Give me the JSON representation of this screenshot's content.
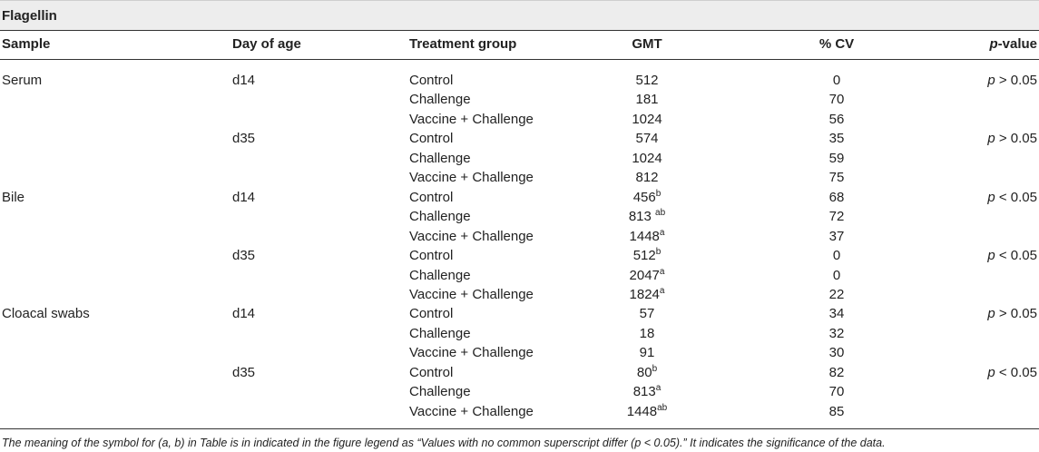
{
  "title": "Flagellin",
  "headers": {
    "sample": "Sample",
    "day": "Day of age",
    "group": "Treatment group",
    "gmt": "GMT",
    "cv": "% CV",
    "p_italic": "p",
    "p_rest": "-value"
  },
  "rows": [
    {
      "sample": "Serum",
      "day": "d14",
      "group": "Control",
      "gmt": "512",
      "gmt_sup": "",
      "cv": "0",
      "p_italic": "p",
      "p_rest": " > 0.05"
    },
    {
      "sample": "",
      "day": "",
      "group": "Challenge",
      "gmt": "181",
      "gmt_sup": "",
      "cv": "70",
      "p_italic": "",
      "p_rest": ""
    },
    {
      "sample": "",
      "day": "",
      "group": "Vaccine + Challenge",
      "gmt": "1024",
      "gmt_sup": "",
      "cv": "56",
      "p_italic": "",
      "p_rest": ""
    },
    {
      "sample": "",
      "day": "d35",
      "group": "Control",
      "gmt": "574",
      "gmt_sup": "",
      "cv": "35",
      "p_italic": "p",
      "p_rest": " > 0.05"
    },
    {
      "sample": "",
      "day": "",
      "group": "Challenge",
      "gmt": "1024",
      "gmt_sup": "",
      "cv": "59",
      "p_italic": "",
      "p_rest": ""
    },
    {
      "sample": "",
      "day": "",
      "group": "Vaccine + Challenge",
      "gmt": "812",
      "gmt_sup": "",
      "cv": "75",
      "p_italic": "",
      "p_rest": ""
    },
    {
      "sample": "Bile",
      "day": "d14",
      "group": "Control",
      "gmt": "456",
      "gmt_sup": "b",
      "cv": "68",
      "p_italic": "p",
      "p_rest": " < 0.05"
    },
    {
      "sample": "",
      "day": "",
      "group": "Challenge",
      "gmt": "813 ",
      "gmt_sup": "ab",
      "cv": "72",
      "p_italic": "",
      "p_rest": ""
    },
    {
      "sample": "",
      "day": "",
      "group": "Vaccine + Challenge",
      "gmt": "1448",
      "gmt_sup": "a",
      "cv": "37",
      "p_italic": "",
      "p_rest": ""
    },
    {
      "sample": "",
      "day": "d35",
      "group": "Control",
      "gmt": "512",
      "gmt_sup": "b",
      "cv": "0",
      "p_italic": "p",
      "p_rest": " < 0.05"
    },
    {
      "sample": "",
      "day": "",
      "group": "Challenge",
      "gmt": "2047",
      "gmt_sup": "a",
      "cv": "0",
      "p_italic": "",
      "p_rest": ""
    },
    {
      "sample": "",
      "day": "",
      "group": "Vaccine + Challenge",
      "gmt": "1824",
      "gmt_sup": "a",
      "cv": "22",
      "p_italic": "",
      "p_rest": ""
    },
    {
      "sample": "Cloacal swabs",
      "day": "d14",
      "group": "Control",
      "gmt": "57",
      "gmt_sup": "",
      "cv": "34",
      "p_italic": "p",
      "p_rest": " > 0.05"
    },
    {
      "sample": "",
      "day": "",
      "group": "Challenge",
      "gmt": "18",
      "gmt_sup": "",
      "cv": "32",
      "p_italic": "",
      "p_rest": ""
    },
    {
      "sample": "",
      "day": "",
      "group": "Vaccine + Challenge",
      "gmt": "91",
      "gmt_sup": "",
      "cv": "30",
      "p_italic": "",
      "p_rest": ""
    },
    {
      "sample": "",
      "day": "d35",
      "group": "Control",
      "gmt": "80",
      "gmt_sup": "b",
      "cv": "82",
      "p_italic": "p",
      "p_rest": " < 0.05"
    },
    {
      "sample": "",
      "day": "",
      "group": "Challenge",
      "gmt": "813",
      "gmt_sup": "a",
      "cv": "70",
      "p_italic": "",
      "p_rest": ""
    },
    {
      "sample": "",
      "day": "",
      "group": "Vaccine + Challenge",
      "gmt": "1448",
      "gmt_sup": "ab",
      "cv": "85",
      "p_italic": "",
      "p_rest": ""
    }
  ],
  "footnote": "The meaning of the symbol for (a, b) in Table is in indicated in the figure legend as “Values with no common superscript differ (p < 0.05).” It indicates the significance of the data."
}
